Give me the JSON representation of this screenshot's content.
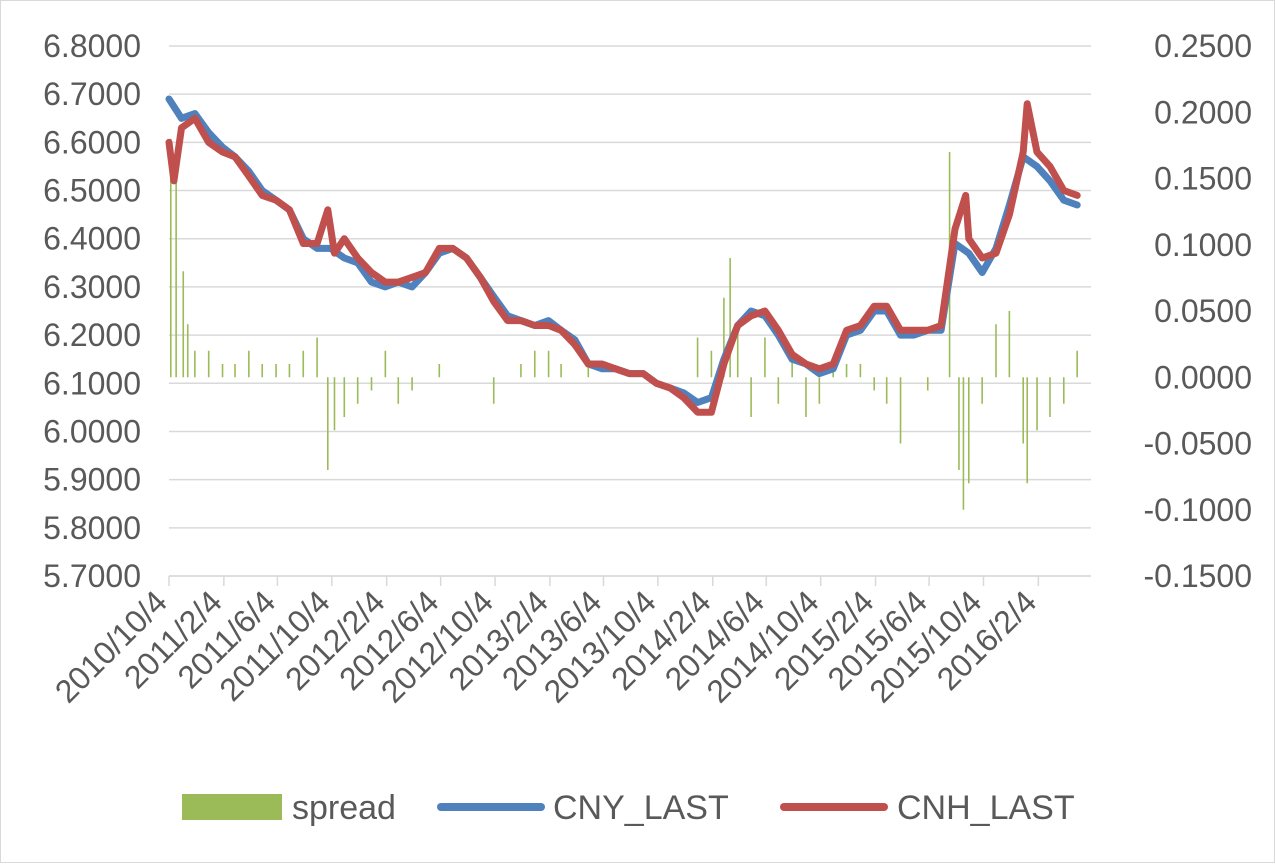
{
  "chart_data": {
    "type": "line",
    "title": "",
    "xlabel": "",
    "ylabel": "",
    "x_tick_labels": [
      "2010/10/4",
      "2011/2/4",
      "2011/6/4",
      "2011/10/4",
      "2012/2/4",
      "2012/6/4",
      "2012/10/4",
      "2013/2/4",
      "2013/6/4",
      "2013/10/4",
      "2014/2/4",
      "2014/6/4",
      "2014/10/4",
      "2015/2/4",
      "2015/6/4",
      "2015/10/4",
      "2016/2/4"
    ],
    "y_left": {
      "min": 5.7,
      "max": 6.8,
      "step": 0.1,
      "tick_labels": [
        "6.8000",
        "6.7000",
        "6.6000",
        "6.5000",
        "6.4000",
        "6.3000",
        "6.2000",
        "6.1000",
        "6.0000",
        "5.9000",
        "5.8000",
        "5.7000"
      ]
    },
    "y_right": {
      "min": -0.15,
      "max": 0.25,
      "step": 0.05,
      "tick_labels": [
        "0.2500",
        "0.2000",
        "0.1500",
        "0.1000",
        "0.0500",
        "0.0000",
        "-0.0500",
        "-0.1000",
        "-0.1500"
      ]
    },
    "grid": true,
    "legend_position": "bottom",
    "legend": [
      {
        "label": "spread",
        "color": "#9bbb59",
        "kind": "bar"
      },
      {
        "label": "CNY_LAST",
        "color": "#4f81bd",
        "kind": "line"
      },
      {
        "label": "CNH_LAST",
        "color": "#c0504d",
        "kind": "line"
      }
    ],
    "series": [
      {
        "name": "CNY_LAST",
        "axis": "left",
        "color": "#4f81bd",
        "points": [
          [
            "2010/10/4",
            6.69
          ],
          [
            "2010/11/1",
            6.65
          ],
          [
            "2010/12/1",
            6.66
          ],
          [
            "2011/1/1",
            6.62
          ],
          [
            "2011/2/1",
            6.59
          ],
          [
            "2011/3/1",
            6.57
          ],
          [
            "2011/4/1",
            6.54
          ],
          [
            "2011/5/1",
            6.5
          ],
          [
            "2011/6/1",
            6.48
          ],
          [
            "2011/7/1",
            6.46
          ],
          [
            "2011/8/1",
            6.4
          ],
          [
            "2011/9/1",
            6.38
          ],
          [
            "2011/10/1",
            6.38
          ],
          [
            "2011/11/1",
            6.36
          ],
          [
            "2011/12/1",
            6.35
          ],
          [
            "2012/1/1",
            6.31
          ],
          [
            "2012/2/1",
            6.3
          ],
          [
            "2012/3/1",
            6.31
          ],
          [
            "2012/4/1",
            6.3
          ],
          [
            "2012/5/1",
            6.33
          ],
          [
            "2012/6/1",
            6.37
          ],
          [
            "2012/7/1",
            6.38
          ],
          [
            "2012/8/1",
            6.36
          ],
          [
            "2012/9/1",
            6.32
          ],
          [
            "2012/10/1",
            6.28
          ],
          [
            "2012/11/1",
            6.24
          ],
          [
            "2012/12/1",
            6.23
          ],
          [
            "2013/1/1",
            6.22
          ],
          [
            "2013/2/1",
            6.23
          ],
          [
            "2013/3/1",
            6.21
          ],
          [
            "2013/4/1",
            6.19
          ],
          [
            "2013/5/1",
            6.14
          ],
          [
            "2013/6/1",
            6.13
          ],
          [
            "2013/7/1",
            6.13
          ],
          [
            "2013/8/1",
            6.12
          ],
          [
            "2013/9/1",
            6.12
          ],
          [
            "2013/10/1",
            6.1
          ],
          [
            "2013/11/1",
            6.09
          ],
          [
            "2013/12/1",
            6.08
          ],
          [
            "2014/1/1",
            6.06
          ],
          [
            "2014/2/1",
            6.07
          ],
          [
            "2014/3/1",
            6.15
          ],
          [
            "2014/4/1",
            6.22
          ],
          [
            "2014/5/1",
            6.25
          ],
          [
            "2014/6/1",
            6.24
          ],
          [
            "2014/7/1",
            6.2
          ],
          [
            "2014/8/1",
            6.15
          ],
          [
            "2014/9/1",
            6.14
          ],
          [
            "2014/10/1",
            6.12
          ],
          [
            "2014/11/1",
            6.13
          ],
          [
            "2014/12/1",
            6.2
          ],
          [
            "2015/1/1",
            6.21
          ],
          [
            "2015/2/1",
            6.25
          ],
          [
            "2015/3/1",
            6.25
          ],
          [
            "2015/4/1",
            6.2
          ],
          [
            "2015/5/1",
            6.2
          ],
          [
            "2015/6/1",
            6.21
          ],
          [
            "2015/7/1",
            6.21
          ],
          [
            "2015/8/1",
            6.39
          ],
          [
            "2015/9/1",
            6.37
          ],
          [
            "2015/10/1",
            6.33
          ],
          [
            "2015/11/1",
            6.38
          ],
          [
            "2015/12/1",
            6.47
          ],
          [
            "2016/1/1",
            6.57
          ],
          [
            "2016/2/1",
            6.55
          ],
          [
            "2016/3/1",
            6.52
          ],
          [
            "2016/4/1",
            6.48
          ],
          [
            "2016/5/1",
            6.47
          ]
        ]
      },
      {
        "name": "CNH_LAST",
        "axis": "left",
        "color": "#c0504d",
        "points": [
          [
            "2010/10/4",
            6.6
          ],
          [
            "2010/10/15",
            6.52
          ],
          [
            "2010/11/1",
            6.63
          ],
          [
            "2010/12/1",
            6.65
          ],
          [
            "2011/1/1",
            6.6
          ],
          [
            "2011/2/1",
            6.58
          ],
          [
            "2011/3/1",
            6.57
          ],
          [
            "2011/4/1",
            6.53
          ],
          [
            "2011/5/1",
            6.49
          ],
          [
            "2011/6/1",
            6.48
          ],
          [
            "2011/7/1",
            6.46
          ],
          [
            "2011/8/1",
            6.39
          ],
          [
            "2011/9/1",
            6.39
          ],
          [
            "2011/9/25",
            6.46
          ],
          [
            "2011/10/10",
            6.37
          ],
          [
            "2011/11/1",
            6.4
          ],
          [
            "2011/12/1",
            6.36
          ],
          [
            "2012/1/1",
            6.33
          ],
          [
            "2012/2/1",
            6.31
          ],
          [
            "2012/3/1",
            6.31
          ],
          [
            "2012/4/1",
            6.32
          ],
          [
            "2012/5/1",
            6.33
          ],
          [
            "2012/6/1",
            6.38
          ],
          [
            "2012/7/1",
            6.38
          ],
          [
            "2012/8/1",
            6.36
          ],
          [
            "2012/9/1",
            6.32
          ],
          [
            "2012/10/1",
            6.27
          ],
          [
            "2012/11/1",
            6.23
          ],
          [
            "2012/12/1",
            6.23
          ],
          [
            "2013/1/1",
            6.22
          ],
          [
            "2013/2/1",
            6.22
          ],
          [
            "2013/3/1",
            6.21
          ],
          [
            "2013/4/1",
            6.18
          ],
          [
            "2013/5/1",
            6.14
          ],
          [
            "2013/6/1",
            6.14
          ],
          [
            "2013/7/1",
            6.13
          ],
          [
            "2013/8/1",
            6.12
          ],
          [
            "2013/9/1",
            6.12
          ],
          [
            "2013/10/1",
            6.1
          ],
          [
            "2013/11/1",
            6.09
          ],
          [
            "2013/12/1",
            6.07
          ],
          [
            "2014/1/1",
            6.04
          ],
          [
            "2014/2/1",
            6.04
          ],
          [
            "2014/3/1",
            6.14
          ],
          [
            "2014/4/1",
            6.22
          ],
          [
            "2014/5/1",
            6.24
          ],
          [
            "2014/6/1",
            6.25
          ],
          [
            "2014/7/1",
            6.21
          ],
          [
            "2014/8/1",
            6.16
          ],
          [
            "2014/9/1",
            6.14
          ],
          [
            "2014/10/1",
            6.13
          ],
          [
            "2014/11/1",
            6.14
          ],
          [
            "2014/12/1",
            6.21
          ],
          [
            "2015/1/1",
            6.22
          ],
          [
            "2015/2/1",
            6.26
          ],
          [
            "2015/3/1",
            6.26
          ],
          [
            "2015/4/1",
            6.21
          ],
          [
            "2015/5/1",
            6.21
          ],
          [
            "2015/6/1",
            6.21
          ],
          [
            "2015/7/1",
            6.22
          ],
          [
            "2015/8/1",
            6.42
          ],
          [
            "2015/8/25",
            6.49
          ],
          [
            "2015/9/1",
            6.4
          ],
          [
            "2015/10/1",
            6.36
          ],
          [
            "2015/11/1",
            6.37
          ],
          [
            "2015/12/1",
            6.45
          ],
          [
            "2016/1/1",
            6.58
          ],
          [
            "2016/1/10",
            6.68
          ],
          [
            "2016/2/1",
            6.58
          ],
          [
            "2016/3/1",
            6.55
          ],
          [
            "2016/4/1",
            6.5
          ],
          [
            "2016/5/1",
            6.49
          ]
        ]
      },
      {
        "name": "spread",
        "axis": "right",
        "color": "#9bbb59",
        "points": [
          [
            "2010/10/8",
            0.18
          ],
          [
            "2010/10/20",
            0.15
          ],
          [
            "2010/11/5",
            0.08
          ],
          [
            "2010/11/15",
            0.04
          ],
          [
            "2010/12/1",
            0.02
          ],
          [
            "2011/1/1",
            0.02
          ],
          [
            "2011/2/1",
            0.01
          ],
          [
            "2011/3/1",
            0.01
          ],
          [
            "2011/4/1",
            0.02
          ],
          [
            "2011/5/1",
            0.01
          ],
          [
            "2011/6/1",
            0.01
          ],
          [
            "2011/7/1",
            0.01
          ],
          [
            "2011/8/1",
            0.02
          ],
          [
            "2011/9/1",
            0.03
          ],
          [
            "2011/9/25",
            -0.07
          ],
          [
            "2011/10/10",
            -0.04
          ],
          [
            "2011/11/1",
            -0.03
          ],
          [
            "2011/12/1",
            -0.02
          ],
          [
            "2012/1/1",
            -0.01
          ],
          [
            "2012/2/1",
            0.02
          ],
          [
            "2012/3/1",
            -0.02
          ],
          [
            "2012/4/1",
            -0.01
          ],
          [
            "2012/5/1",
            0.0
          ],
          [
            "2012/6/1",
            0.01
          ],
          [
            "2012/8/1",
            0.0
          ],
          [
            "2012/10/1",
            -0.02
          ],
          [
            "2012/12/1",
            0.01
          ],
          [
            "2013/1/1",
            0.02
          ],
          [
            "2013/2/1",
            0.02
          ],
          [
            "2013/3/1",
            0.01
          ],
          [
            "2013/5/1",
            0.01
          ],
          [
            "2013/7/1",
            0.0
          ],
          [
            "2013/9/1",
            0.0
          ],
          [
            "2013/11/1",
            0.0
          ],
          [
            "2014/1/1",
            0.03
          ],
          [
            "2014/2/1",
            0.02
          ],
          [
            "2014/3/1",
            0.06
          ],
          [
            "2014/3/15",
            0.09
          ],
          [
            "2014/4/1",
            0.04
          ],
          [
            "2014/5/1",
            -0.03
          ],
          [
            "2014/6/1",
            0.03
          ],
          [
            "2014/7/1",
            -0.02
          ],
          [
            "2014/8/1",
            0.02
          ],
          [
            "2014/9/1",
            -0.03
          ],
          [
            "2014/10/1",
            -0.02
          ],
          [
            "2014/11/1",
            0.01
          ],
          [
            "2014/12/1",
            0.01
          ],
          [
            "2015/1/1",
            0.01
          ],
          [
            "2015/2/1",
            -0.01
          ],
          [
            "2015/3/1",
            -0.02
          ],
          [
            "2015/4/1",
            -0.05
          ],
          [
            "2015/5/1",
            0.0
          ],
          [
            "2015/6/1",
            -0.01
          ],
          [
            "2015/7/1",
            0.0
          ],
          [
            "2015/7/20",
            0.17
          ],
          [
            "2015/8/10",
            -0.07
          ],
          [
            "2015/8/20",
            -0.1
          ],
          [
            "2015/9/1",
            -0.08
          ],
          [
            "2015/10/1",
            -0.02
          ],
          [
            "2015/11/1",
            0.04
          ],
          [
            "2015/12/1",
            0.05
          ],
          [
            "2016/1/1",
            -0.05
          ],
          [
            "2016/1/10",
            -0.08
          ],
          [
            "2016/2/1",
            -0.04
          ],
          [
            "2016/3/1",
            -0.03
          ],
          [
            "2016/4/1",
            -0.02
          ],
          [
            "2016/5/1",
            0.02
          ]
        ]
      }
    ]
  }
}
